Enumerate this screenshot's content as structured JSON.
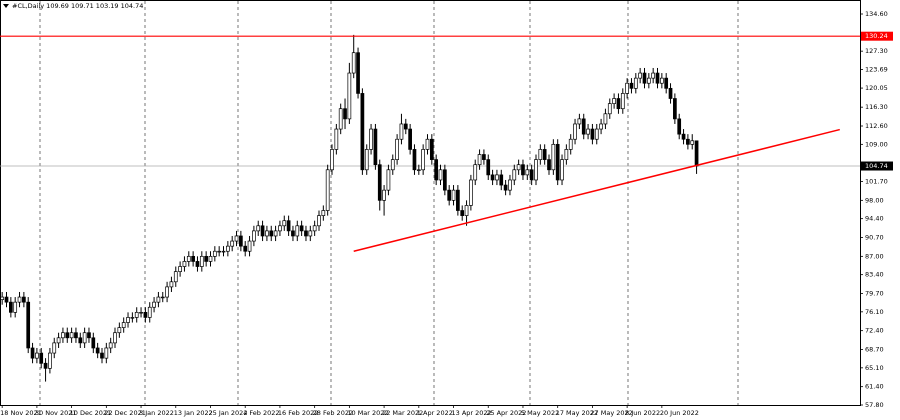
{
  "chart_data": {
    "type": "candlestick",
    "title": "#CL,Daily  109.69 109.71 103.19 104.74",
    "categories": [
      "18 Nov 2021",
      null,
      null,
      null,
      null,
      null,
      null,
      null,
      "30 Nov 2021",
      null,
      null,
      null,
      null,
      null,
      null,
      null,
      "10 Dec 2021",
      null,
      null,
      null,
      null,
      null,
      null,
      null,
      "22 Dec 2021",
      null,
      null,
      null,
      null,
      null,
      null,
      null,
      "3 Jan 2022",
      null,
      null,
      null,
      null,
      null,
      null,
      null,
      "13 Jan 2022",
      null,
      null,
      null,
      null,
      null,
      null,
      null,
      "25 Jan 2022",
      null,
      null,
      null,
      null,
      null,
      null,
      null,
      "4 Feb 2022",
      null,
      null,
      null,
      null,
      null,
      null,
      null,
      "16 Feb 2022",
      null,
      null,
      null,
      null,
      null,
      null,
      null,
      "28 Feb 2022",
      null,
      null,
      null,
      null,
      null,
      null,
      null,
      "10 Mar 2022",
      null,
      null,
      null,
      null,
      null,
      null,
      null,
      "22 Mar 2022",
      null,
      null,
      null,
      null,
      null,
      null,
      null,
      "1 Apr 2022",
      null,
      null,
      null,
      null,
      null,
      null,
      null,
      "13 Apr 2022",
      null,
      null,
      null,
      null,
      null,
      null,
      null,
      "25 Apr 2022",
      null,
      null,
      null,
      null,
      null,
      null,
      null,
      "5 May 2022",
      null,
      null,
      null,
      null,
      null,
      null,
      null,
      "17 May 2022",
      null,
      null,
      null,
      null,
      null,
      null,
      null,
      "27 May 2022",
      null,
      null,
      null,
      null,
      null,
      null,
      null,
      "8 Jun 2022",
      null,
      null,
      null,
      null,
      null,
      null,
      null,
      "20 Jun 2022",
      null,
      null,
      null,
      null,
      null,
      null,
      null,
      null
    ],
    "open": [
      78.5,
      79,
      78,
      76,
      78,
      79,
      78,
      69,
      67,
      68,
      66,
      65,
      68,
      70,
      71,
      72,
      71,
      72,
      71,
      70,
      72,
      71,
      69,
      68,
      67,
      69,
      70,
      72,
      73,
      74,
      75,
      75,
      76,
      76,
      75,
      77,
      78,
      79,
      79,
      81,
      82,
      84,
      85,
      86,
      87,
      86,
      85,
      87,
      86,
      87,
      88,
      88,
      88,
      89,
      90,
      91,
      89,
      88,
      90,
      92,
      93,
      91,
      92,
      91,
      92,
      93,
      94,
      92,
      91,
      93,
      92,
      91,
      92,
      93,
      95,
      96,
      104,
      108,
      112,
      116,
      114,
      123,
      127,
      119,
      104,
      108,
      112,
      105,
      98,
      100,
      104,
      106,
      110,
      113,
      112,
      108,
      104,
      104,
      108,
      110,
      106,
      102,
      104,
      100,
      98,
      100,
      96,
      95,
      97,
      102,
      105,
      107,
      106,
      103,
      102,
      103,
      101,
      100,
      102,
      104,
      105,
      103,
      104,
      102,
      106,
      108,
      106,
      104,
      109,
      102,
      106,
      108,
      110,
      113,
      114,
      111,
      112,
      110,
      112,
      113,
      115,
      117,
      118,
      116,
      119,
      121,
      120,
      122,
      123,
      121,
      122,
      123,
      121,
      122,
      120,
      118,
      114,
      111,
      110,
      109,
      109.69
    ],
    "high": [
      80,
      80,
      79,
      79,
      80,
      80,
      79,
      70,
      69,
      69,
      67,
      69,
      71,
      72,
      73,
      73,
      73,
      73,
      72,
      73,
      73,
      72,
      70,
      69,
      70,
      71,
      73,
      74,
      75,
      76,
      76,
      77,
      77,
      77,
      78,
      79,
      80,
      80,
      82,
      83,
      85,
      86,
      87,
      88,
      88,
      87,
      88,
      88,
      88,
      89,
      89,
      89,
      90,
      91,
      92,
      92,
      90,
      91,
      93,
      94,
      94,
      93,
      93,
      93,
      94,
      95,
      95,
      93,
      94,
      94,
      93,
      93,
      94,
      96,
      97,
      105,
      109,
      113,
      117,
      118,
      125,
      130.5,
      128,
      120,
      109,
      113,
      113,
      106,
      101,
      105,
      107,
      111,
      115,
      114,
      113,
      109,
      105,
      109,
      111,
      111,
      107,
      105,
      105,
      101,
      101,
      101,
      97,
      98,
      103,
      106,
      108,
      108,
      107,
      104,
      104,
      104,
      102,
      103,
      105,
      106,
      106,
      105,
      105,
      107,
      109,
      109,
      107,
      110,
      110,
      107,
      109,
      111,
      114,
      115,
      115,
      113,
      113,
      113,
      114,
      116,
      118,
      119,
      119,
      120,
      122,
      122,
      123,
      124,
      124,
      123,
      124,
      124,
      123,
      123,
      121,
      119,
      115,
      112,
      111,
      111,
      109.71
    ],
    "low": [
      77.5,
      77,
      75,
      75,
      77,
      77,
      68,
      66,
      66,
      65,
      62.4,
      64,
      67,
      69,
      70,
      70,
      70,
      70,
      69,
      69,
      70,
      68,
      67,
      66,
      66,
      68,
      69,
      71,
      72,
      73,
      74,
      74,
      75,
      74,
      74,
      76,
      77,
      78,
      78,
      80,
      81,
      83,
      84,
      85,
      85,
      84,
      84,
      85,
      85,
      86,
      87,
      87,
      87,
      88,
      89,
      88,
      87,
      87,
      89,
      91,
      90,
      90,
      90,
      90,
      91,
      92,
      91,
      90,
      90,
      91,
      90,
      90,
      91,
      92,
      94,
      95,
      103,
      107,
      111,
      112,
      113,
      122,
      118,
      103,
      103,
      107,
      104,
      96,
      95,
      99,
      103,
      105,
      109,
      111,
      107,
      103,
      103,
      103,
      107,
      105,
      101,
      101,
      99,
      97,
      97,
      95,
      94,
      93,
      96,
      101,
      104,
      105,
      102,
      101,
      101,
      100,
      99,
      99,
      101,
      103,
      102,
      102,
      101,
      101,
      105,
      105,
      103,
      103,
      101,
      101,
      105,
      107,
      109,
      112,
      110,
      110,
      109,
      109,
      111,
      112,
      114,
      116,
      115,
      115,
      118,
      119,
      119,
      121,
      120,
      120,
      121,
      120,
      120,
      119,
      117,
      113,
      110,
      109,
      108,
      108,
      103.19
    ],
    "close": [
      79,
      78,
      76,
      78,
      79,
      78,
      69,
      67,
      68,
      66,
      65,
      68,
      70,
      71,
      72,
      71,
      72,
      71,
      70,
      72,
      71,
      69,
      68,
      67,
      69,
      70,
      72,
      73,
      74,
      75,
      75,
      76,
      76,
      75,
      77,
      78,
      79,
      79,
      81,
      82,
      84,
      85,
      86,
      87,
      86,
      85,
      87,
      86,
      87,
      88,
      88,
      88,
      89,
      90,
      91,
      89,
      88,
      90,
      92,
      93,
      91,
      92,
      91,
      92,
      93,
      94,
      92,
      91,
      93,
      92,
      91,
      92,
      93,
      95,
      96,
      104,
      108,
      112,
      116,
      114,
      123,
      127,
      119,
      104,
      108,
      112,
      105,
      98,
      100,
      104,
      106,
      110,
      113,
      112,
      108,
      104,
      104,
      108,
      110,
      106,
      102,
      104,
      100,
      98,
      100,
      96,
      95,
      97,
      102,
      105,
      107,
      106,
      103,
      102,
      103,
      101,
      100,
      102,
      104,
      105,
      103,
      104,
      102,
      106,
      108,
      106,
      104,
      109,
      102,
      106,
      108,
      110,
      113,
      114,
      111,
      112,
      110,
      112,
      113,
      115,
      117,
      118,
      116,
      119,
      121,
      120,
      122,
      123,
      121,
      122,
      123,
      121,
      122,
      120,
      118,
      114,
      111,
      110,
      109,
      109.7,
      104.74
    ],
    "bull_color": "#ffffff",
    "bear_color": "#000000",
    "ylim": [
      57.8,
      137.35
    ],
    "yticks": [
      {
        "value": 134.6,
        "label": "134.60"
      },
      {
        "value": 127.3,
        "label": "127.30"
      },
      {
        "value": 123.69,
        "label": "123.69"
      },
      {
        "value": 120.05,
        "label": "120.05"
      },
      {
        "value": 116.3,
        "label": "116.30"
      },
      {
        "value": 112.6,
        "label": "112.60"
      },
      {
        "value": 109,
        "label": "109.00"
      },
      {
        "value": 101.7,
        "label": "101.70"
      },
      {
        "value": 98,
        "label": "98.00"
      },
      {
        "value": 94.4,
        "label": "94.40"
      },
      {
        "value": 90.7,
        "label": "90.70"
      },
      {
        "value": 87,
        "label": "87.00"
      },
      {
        "value": 83.4,
        "label": "83.40"
      },
      {
        "value": 79.7,
        "label": "79.70"
      },
      {
        "value": 76.1,
        "label": "76.10"
      },
      {
        "value": 72.4,
        "label": "72.40"
      },
      {
        "value": 68.7,
        "label": "68.70"
      },
      {
        "value": 65.1,
        "label": "65.10"
      },
      {
        "value": 61.4,
        "label": "61.40"
      },
      {
        "value": 57.8,
        "label": "57.80"
      }
    ],
    "hline": {
      "value": 130.24,
      "label": "130.24",
      "color": "#ff0000"
    },
    "current_price": {
      "value": 104.74,
      "label": "104.74"
    },
    "trendline": {
      "x": [
        81,
        193
      ],
      "y": [
        88,
        111.9
      ],
      "color": "#ff0000"
    }
  }
}
